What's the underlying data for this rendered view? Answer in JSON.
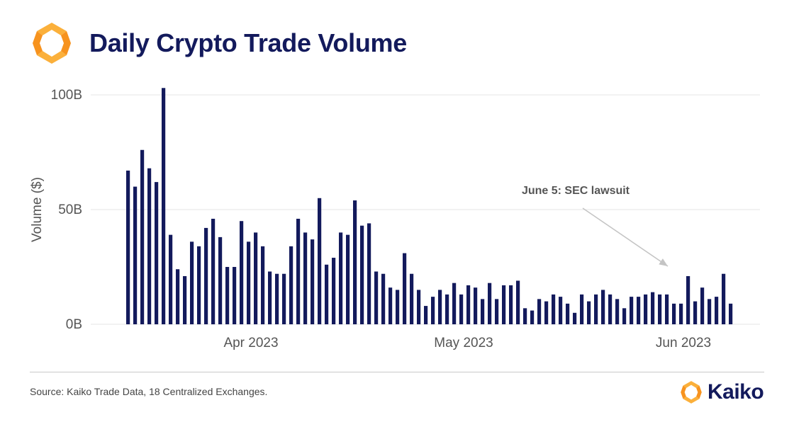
{
  "header": {
    "title": "Daily Crypto Trade Volume"
  },
  "footer": {
    "source": "Source: Kaiko Trade Data, 18 Centralized Exchanges.",
    "brand_name": "Kaiko"
  },
  "colors": {
    "bar": "#131a5c",
    "title": "#131a5c",
    "logo_orange": "#f7931e",
    "logo_yellow": "#fbb03b",
    "grid": "#e6e6e6",
    "annotation_arrow": "#c4c4c4"
  },
  "chart_data": {
    "type": "bar",
    "title": "Daily Crypto Trade Volume",
    "xlabel": "",
    "ylabel": "Volume ($)",
    "ylim": [
      0,
      100
    ],
    "y_unit": "billions USD",
    "yticks": [
      {
        "value": 0,
        "label": "0B"
      },
      {
        "value": 50,
        "label": "50B"
      },
      {
        "value": 100,
        "label": "100B"
      }
    ],
    "grid": true,
    "x_start": "2023-03-13",
    "x_tick_labels": [
      {
        "date": "2023-04-01",
        "label": "Apr 2023"
      },
      {
        "date": "2023-05-01",
        "label": "May 2023"
      },
      {
        "date": "2023-06-01",
        "label": "Jun 2023"
      }
    ],
    "values": [
      67,
      60,
      76,
      68,
      62,
      103,
      39,
      24,
      21,
      36,
      34,
      42,
      46,
      38,
      25,
      25,
      45,
      36,
      40,
      34,
      23,
      22,
      22,
      34,
      46,
      40,
      37,
      55,
      26,
      29,
      40,
      39,
      54,
      43,
      44,
      23,
      22,
      16,
      15,
      31,
      22,
      15,
      8,
      12,
      15,
      13,
      18,
      13,
      17,
      16,
      11,
      18,
      11,
      17,
      17,
      19,
      7,
      6,
      11,
      10,
      13,
      12,
      9,
      5,
      13,
      10,
      13,
      15,
      13,
      11,
      7,
      12,
      12,
      13,
      14,
      13,
      13,
      9,
      9,
      21,
      10,
      16,
      11,
      12,
      22,
      9
    ],
    "annotation": {
      "text": "June 5: SEC lawsuit",
      "date": "2023-06-05"
    }
  }
}
